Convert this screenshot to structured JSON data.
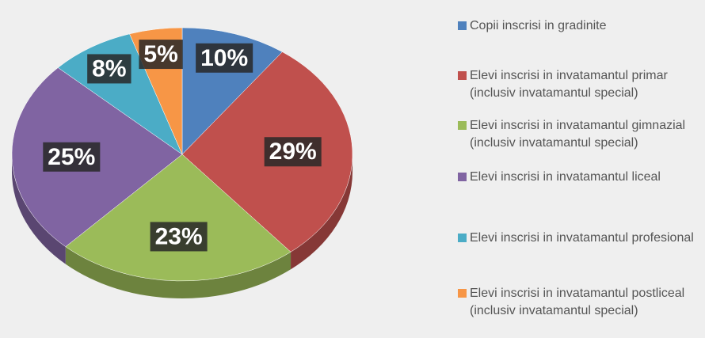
{
  "chart_data": {
    "type": "pie",
    "categories": [
      "Copii inscrisi in gradinite",
      "Elevi inscrisi in invatamantul primar (inclusiv invatamantul special)",
      "Elevi inscrisi in invatamantul gimnazial (inclusiv invatamantul special)",
      "Elevi inscrisi in invatamantul liceal",
      "Elevi inscrisi in invatamantul profesional",
      "Elevi inscrisi in invatamantul postliceal (inclusiv invatamantul special)"
    ],
    "values": [
      10,
      29,
      23,
      25,
      8,
      5
    ],
    "value_labels": [
      "10%",
      "29%",
      "23%",
      "25%",
      "8%",
      "5%"
    ],
    "colors": [
      "#4f81bd",
      "#c0504d",
      "#9bbb59",
      "#8064a2",
      "#4bacc6",
      "#f79646"
    ],
    "legend": "right"
  }
}
